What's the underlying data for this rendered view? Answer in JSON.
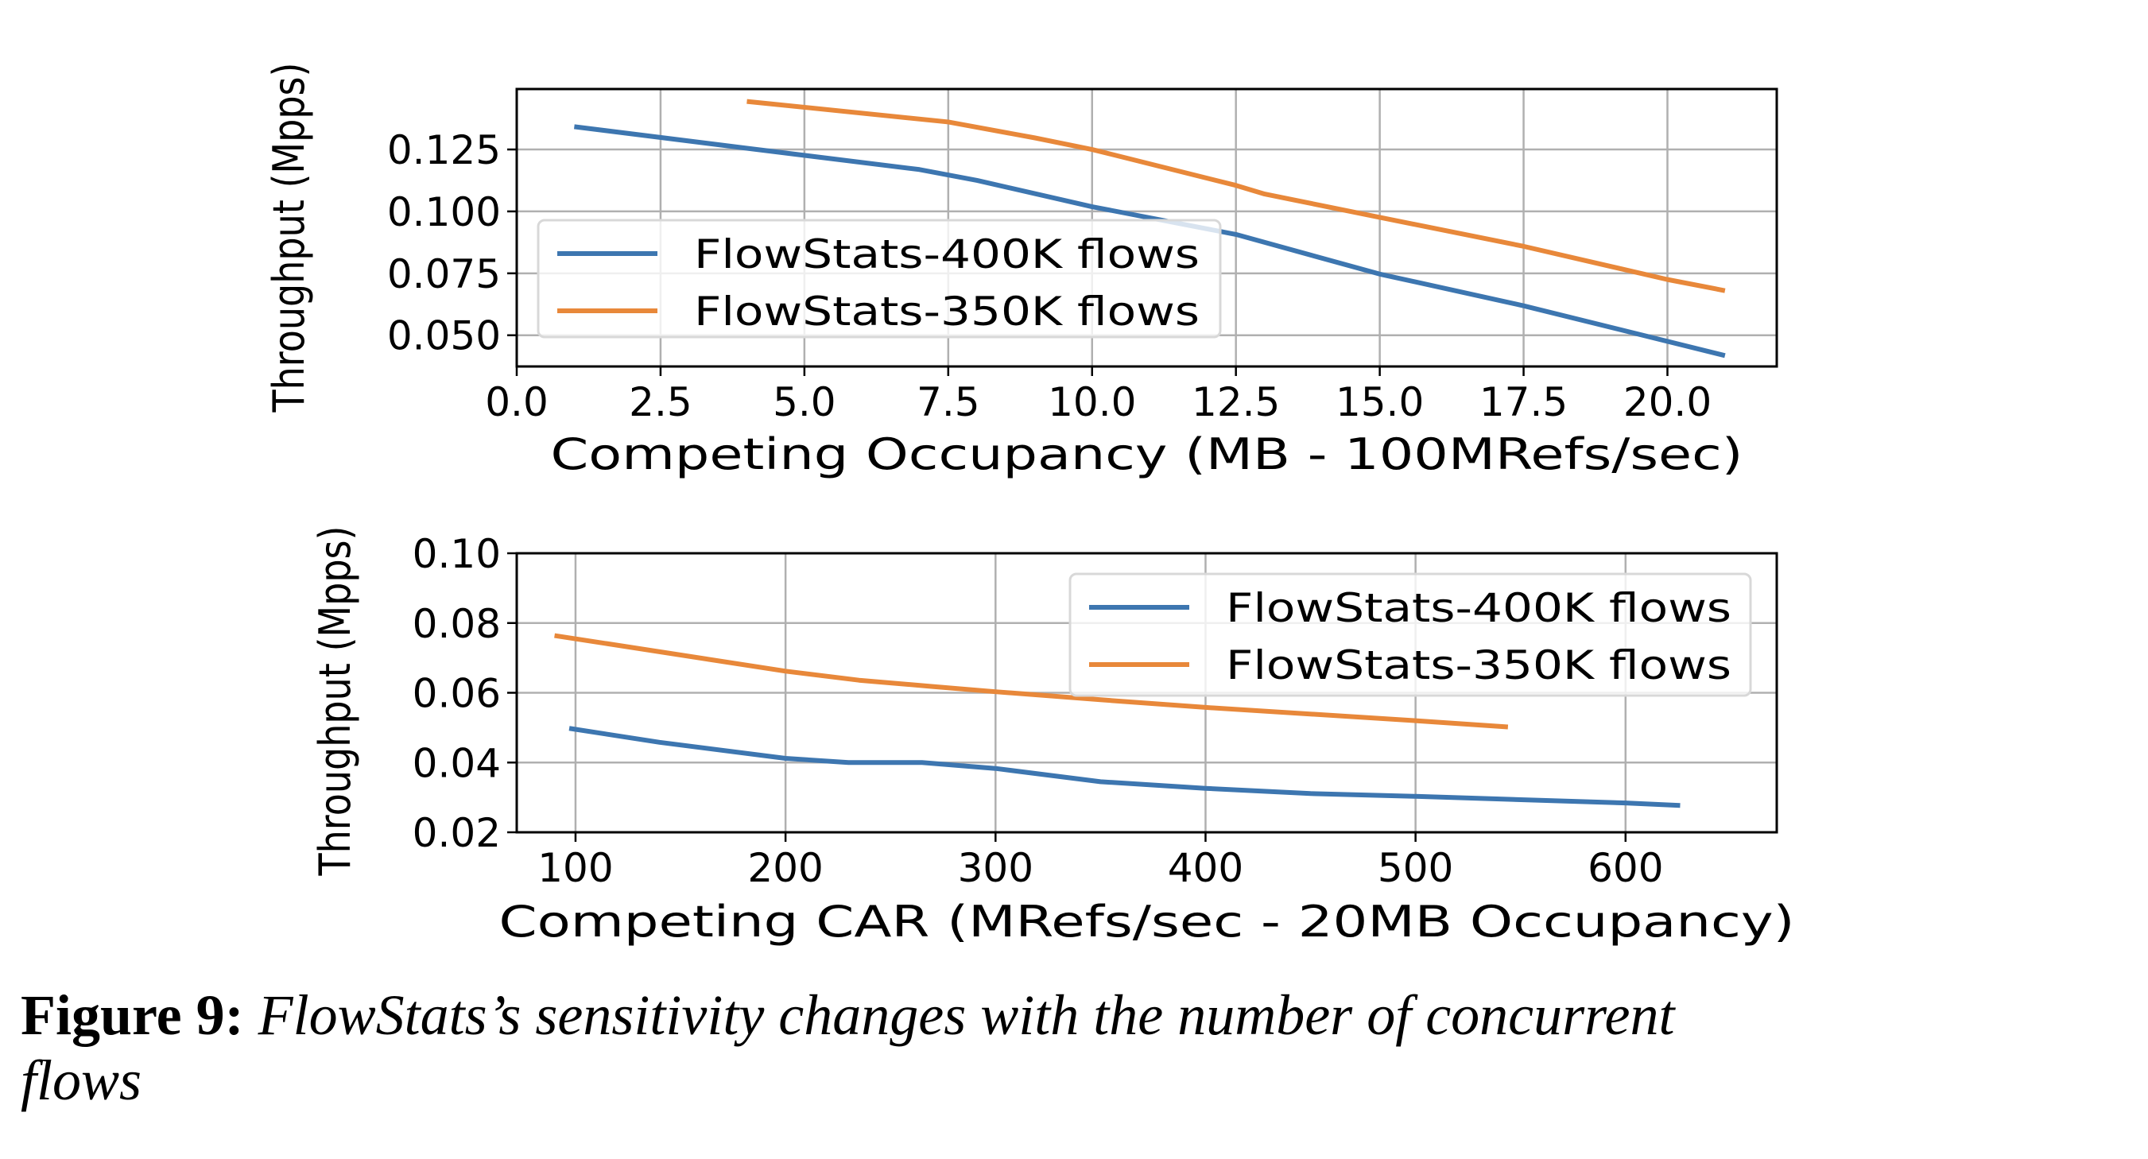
{
  "chart_data": [
    {
      "type": "line",
      "xlabel": "Competing Occupancy (MB - 100MRefs/sec)",
      "ylabel": "Throughput (Mpps)",
      "xlim": [
        0,
        21.9
      ],
      "ylim": [
        0.0374,
        0.1494
      ],
      "xticks": [
        "0.0",
        "2.5",
        "5.0",
        "7.5",
        "10.0",
        "12.5",
        "15.0",
        "17.5",
        "20.0"
      ],
      "yticks": [
        "0.050",
        "0.075",
        "0.100",
        "0.125"
      ],
      "grid": true,
      "legend_position": "center-left",
      "series": [
        {
          "name": "FlowStats-400K flows",
          "color": "#3d76b0",
          "x": [
            1,
            4,
            7,
            8,
            10,
            12.5,
            15,
            17.5,
            21
          ],
          "y": [
            0.1342,
            0.1255,
            0.1169,
            0.1125,
            0.1019,
            0.0907,
            0.0747,
            0.0619,
            0.0418
          ]
        },
        {
          "name": "FlowStats-350K flows",
          "color": "#e8883a",
          "x": [
            4,
            7.5,
            9,
            10,
            12.5,
            13,
            15,
            17.5,
            20,
            21
          ],
          "y": [
            0.1444,
            0.1361,
            0.1297,
            0.125,
            0.1105,
            0.107,
            0.0976,
            0.0859,
            0.0725,
            0.068
          ]
        }
      ]
    },
    {
      "type": "line",
      "xlabel": "Competing CAR (MRefs/sec - 20MB Occupancy)",
      "ylabel": "Throughput (Mpps)",
      "xlim": [
        72,
        672
      ],
      "ylim": [
        0.02,
        0.1
      ],
      "xticks": [
        "100",
        "200",
        "300",
        "400",
        "500",
        "600"
      ],
      "yticks": [
        "0.02",
        "0.04",
        "0.06",
        "0.08",
        "0.10"
      ],
      "grid": true,
      "legend_position": "upper-right",
      "series": [
        {
          "name": "FlowStats-400K flows",
          "color": "#3d76b0",
          "x": [
            97,
            140,
            200,
            230,
            265,
            300,
            350,
            400,
            450,
            500,
            600,
            626
          ],
          "y": [
            0.0498,
            0.0458,
            0.0412,
            0.04,
            0.04,
            0.0383,
            0.0345,
            0.0326,
            0.0311,
            0.0303,
            0.0284,
            0.0277
          ]
        },
        {
          "name": "FlowStats-350K flows",
          "color": "#e8883a",
          "x": [
            90,
            200,
            235,
            270,
            300,
            350,
            400,
            500,
            544
          ],
          "y": [
            0.0764,
            0.0662,
            0.0636,
            0.0618,
            0.0603,
            0.058,
            0.0558,
            0.052,
            0.0502
          ]
        }
      ]
    }
  ],
  "caption": {
    "label": "Figure 9:",
    "text_line1": "FlowStats’s sensitivity changes with the number of concurrent",
    "text_line2": "flows"
  }
}
